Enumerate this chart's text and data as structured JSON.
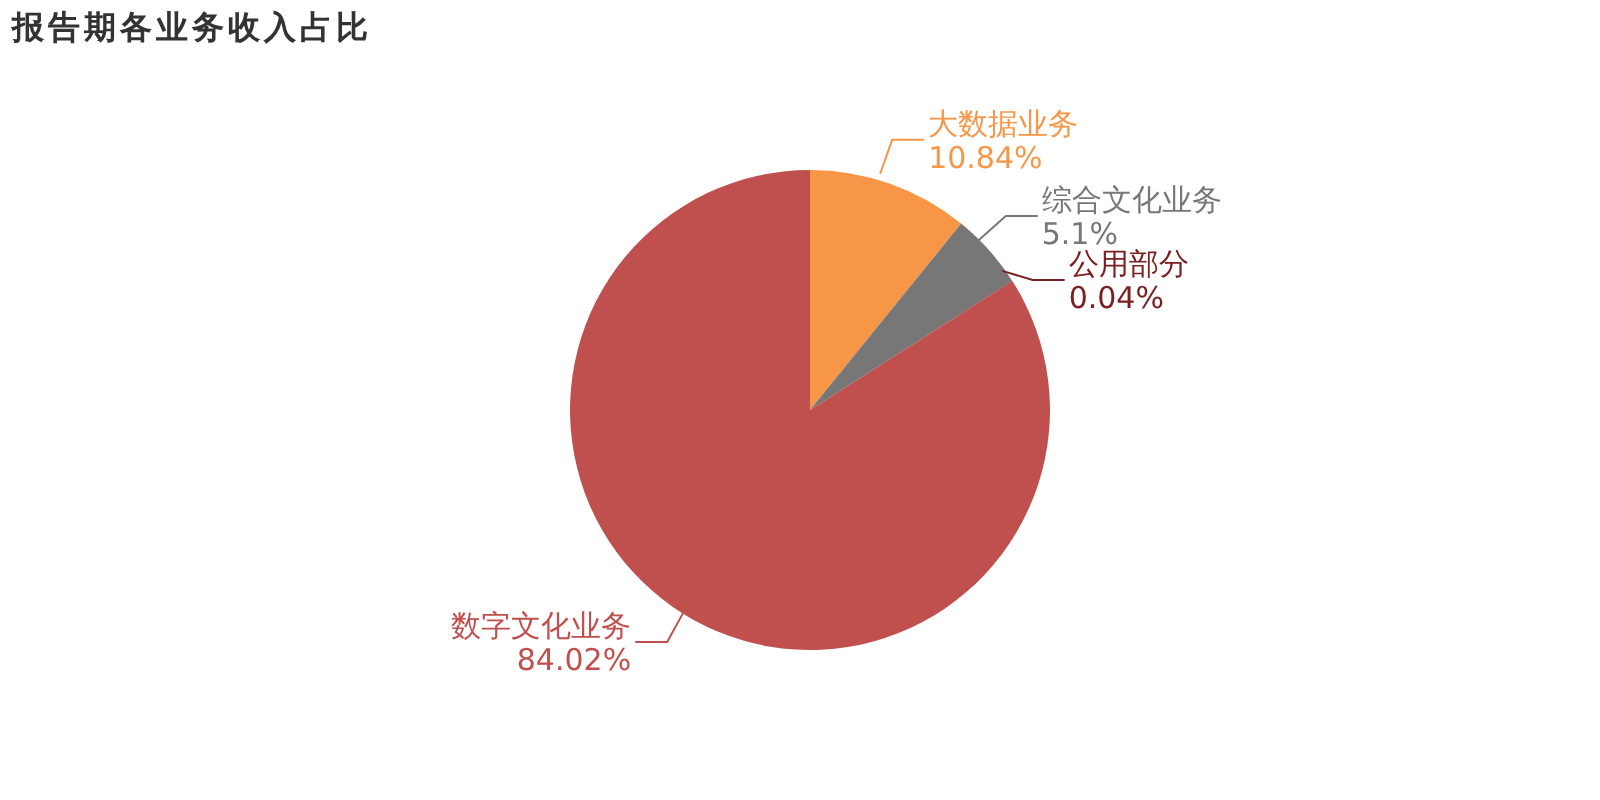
{
  "chart_data": {
    "type": "pie",
    "title": "报告期各业务收入占比",
    "categories": [
      "大数据业务",
      "综合文化业务",
      "公用部分",
      "数字文化业务"
    ],
    "values": [
      10.84,
      5.1,
      0.04,
      84.02
    ],
    "value_labels": [
      "10.84%",
      "5.1%",
      "0.04%",
      "84.02%"
    ],
    "colors": [
      "#f79646",
      "#777777",
      "#7b2020",
      "#c0504d"
    ],
    "legend": false
  }
}
